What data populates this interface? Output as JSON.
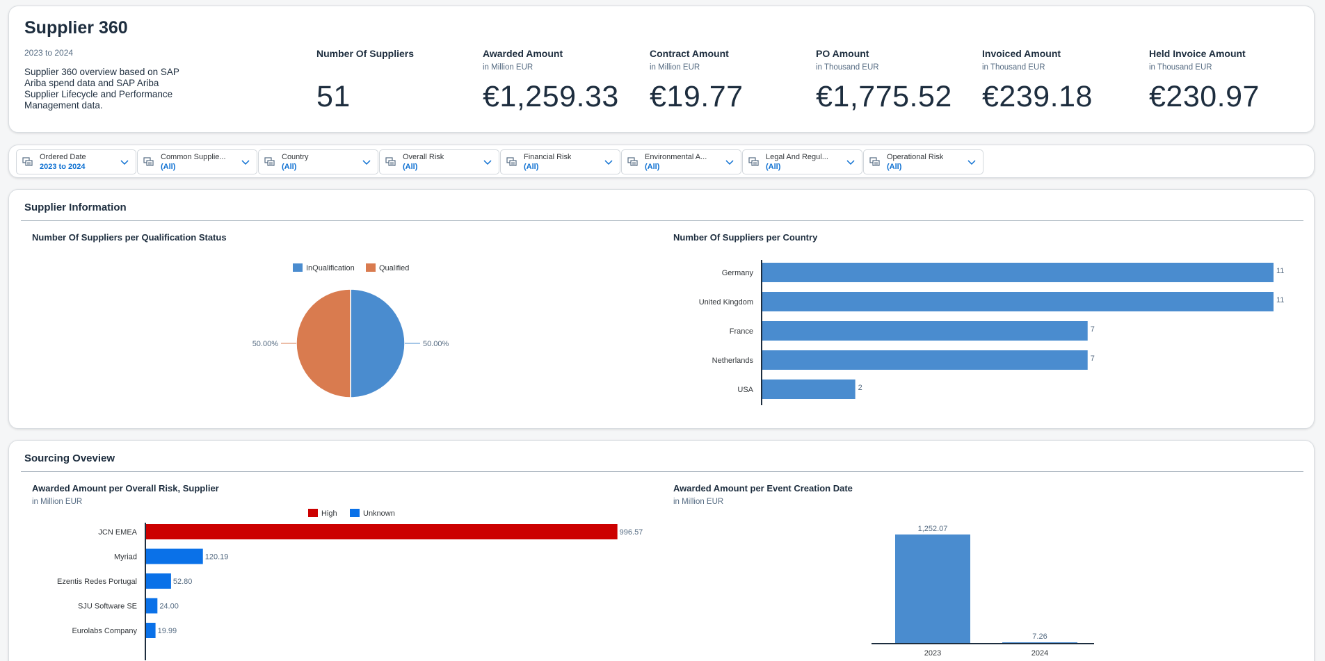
{
  "header": {
    "title": "Supplier 360",
    "date_range": "2023 to 2024",
    "description": "Supplier 360 overview based on SAP Ariba spend data and SAP Ariba Supplier Lifecycle and Performance Management data.",
    "kpis": [
      {
        "title": "Number Of Suppliers",
        "subtitle": "",
        "value": "51"
      },
      {
        "title": "Awarded Amount",
        "subtitle": "in Million EUR",
        "value": "€1,259.33"
      },
      {
        "title": "Contract Amount",
        "subtitle": "in Million EUR",
        "value": "€19.77"
      },
      {
        "title": "PO Amount",
        "subtitle": "in Thousand EUR",
        "value": "€1,775.52"
      },
      {
        "title": "Invoiced Amount",
        "subtitle": "in Thousand EUR",
        "value": "€239.18"
      },
      {
        "title": "Held Invoice Amount",
        "subtitle": "in Thousand EUR",
        "value": "€230.97"
      }
    ]
  },
  "filters": [
    {
      "label": "Ordered Date",
      "value": "2023 to 2024"
    },
    {
      "label": "Common Supplie...",
      "value": "(All)"
    },
    {
      "label": "Country",
      "value": "(All)"
    },
    {
      "label": "Overall Risk",
      "value": "(All)"
    },
    {
      "label": "Financial Risk",
      "value": "(All)"
    },
    {
      "label": "Environmental A...",
      "value": "(All)"
    },
    {
      "label": "Legal And Regul...",
      "value": "(All)"
    },
    {
      "label": "Operational Risk",
      "value": "(All)"
    }
  ],
  "supplier_section": {
    "title": "Supplier Information"
  },
  "sourcing_section": {
    "title": "Sourcing Oveview"
  },
  "chart_data": [
    {
      "type": "pie",
      "title": "Number Of Suppliers per Qualification Status",
      "legend": [
        "InQualification",
        "Qualified"
      ],
      "colors": [
        "#4a8ccf",
        "#d97b4f"
      ],
      "values": [
        50.0,
        50.0
      ],
      "labels": [
        "50.00%",
        "50.00%"
      ]
    },
    {
      "type": "bar",
      "orientation": "horizontal",
      "title": "Number Of Suppliers per Country",
      "categories": [
        "Germany",
        "United Kingdom",
        "France",
        "Netherlands",
        "USA"
      ],
      "values": [
        11,
        11,
        7,
        7,
        2
      ],
      "xlim": [
        0,
        11
      ],
      "color": "#4a8ccf"
    },
    {
      "type": "bar",
      "orientation": "horizontal",
      "title": "Awarded Amount per Overall Risk, Supplier",
      "subtitle": "in Million EUR",
      "legend": [
        "High",
        "Unknown"
      ],
      "legend_colors": [
        "#cc0000",
        "#0a71e8"
      ],
      "categories": [
        "JCN EMEA",
        "Myriad",
        "Ezentis Redes Portugal",
        "SJU Software SE",
        "Eurolabs Company"
      ],
      "values": [
        996.57,
        120.19,
        52.8,
        24.0,
        19.99
      ],
      "value_labels": [
        "996.57",
        "120.19",
        "52.80",
        "24.00",
        "19.99"
      ],
      "risk": [
        "High",
        "Unknown",
        "Unknown",
        "Unknown",
        "Unknown"
      ],
      "xlim": [
        0,
        1000
      ]
    },
    {
      "type": "bar",
      "orientation": "vertical",
      "title": "Awarded Amount per Event Creation Date",
      "subtitle": "in Million EUR",
      "categories": [
        "2023",
        "2024"
      ],
      "values": [
        1252.07,
        7.26
      ],
      "value_labels": [
        "1,252.07",
        "7.26"
      ],
      "ylim": [
        0,
        1252.07
      ],
      "color": "#4a8ccf"
    }
  ]
}
